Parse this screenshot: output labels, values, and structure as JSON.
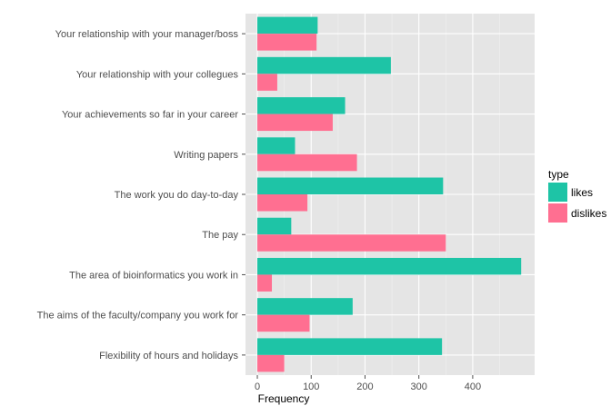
{
  "chart_data": {
    "type": "bar",
    "orientation": "horizontal",
    "title": "",
    "xlabel": "Frequency",
    "ylabel": "",
    "xlim": [
      -22,
      515
    ],
    "xticks": [
      0,
      100,
      200,
      300,
      400
    ],
    "grid": true,
    "legend_position": "right",
    "legend_title": "type",
    "categories": [
      "Your relationship with your manager/boss",
      "Your relationship with your collegues",
      "Your achievements so far in your career",
      "Writing papers",
      "The work you do day-to-day",
      "The pay",
      "The area of bioinformatics you work in",
      "The aims of the faculty/company you work for",
      "Flexibility of hours and holidays"
    ],
    "series": [
      {
        "name": "likes",
        "color": "#1ec4a6",
        "values": [
          112,
          248,
          163,
          70,
          345,
          63,
          490,
          177,
          343
        ]
      },
      {
        "name": "dislikes",
        "color": "#ff6f91",
        "values": [
          110,
          37,
          140,
          185,
          93,
          350,
          27,
          97,
          50
        ]
      }
    ]
  }
}
